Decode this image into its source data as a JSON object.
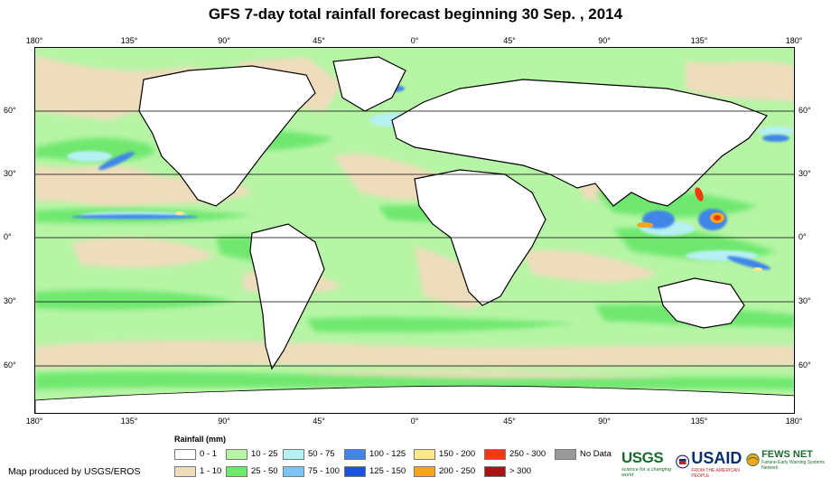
{
  "title": "GFS 7-day total rainfall forecast beginning 30 Sep. , 2014",
  "axes": {
    "lon_ticks": [
      "180°",
      "135°",
      "90°",
      "45°",
      "0°",
      "45°",
      "90°",
      "135°",
      "180°"
    ],
    "lat_ticks": [
      "60°",
      "30°",
      "0°",
      "30°",
      "60°"
    ]
  },
  "legend": {
    "title": "Rainfall (mm)",
    "items": [
      {
        "label": "0 - 1",
        "color": "#ffffff"
      },
      {
        "label": "1 - 10",
        "color": "#efdcbc"
      },
      {
        "label": "10 - 25",
        "color": "#b6f5a5"
      },
      {
        "label": "25 - 50",
        "color": "#6fe86f"
      },
      {
        "label": "50 - 75",
        "color": "#b5f0f3"
      },
      {
        "label": "75 - 100",
        "color": "#7ec4f5"
      },
      {
        "label": "100 - 125",
        "color": "#3f86e6"
      },
      {
        "label": "125 - 150",
        "color": "#1a52d9"
      },
      {
        "label": "150 - 200",
        "color": "#fde98b"
      },
      {
        "label": "200 - 250",
        "color": "#f7a51e"
      },
      {
        "label": "250 - 300",
        "color": "#f23a0e"
      },
      {
        "label": "> 300",
        "color": "#a31616"
      },
      {
        "label": "No Data",
        "color": "#999999"
      }
    ]
  },
  "credit": "Map produced by USGS/EROS",
  "logos": {
    "usgs": {
      "name": "USGS",
      "tagline": "science for a changing world"
    },
    "usaid": {
      "name": "USAID",
      "tagline": "FROM THE AMERICAN PEOPLE"
    },
    "fews": {
      "name": "FEWS NET",
      "tagline": "Famine Early Warning Systems Network"
    }
  }
}
